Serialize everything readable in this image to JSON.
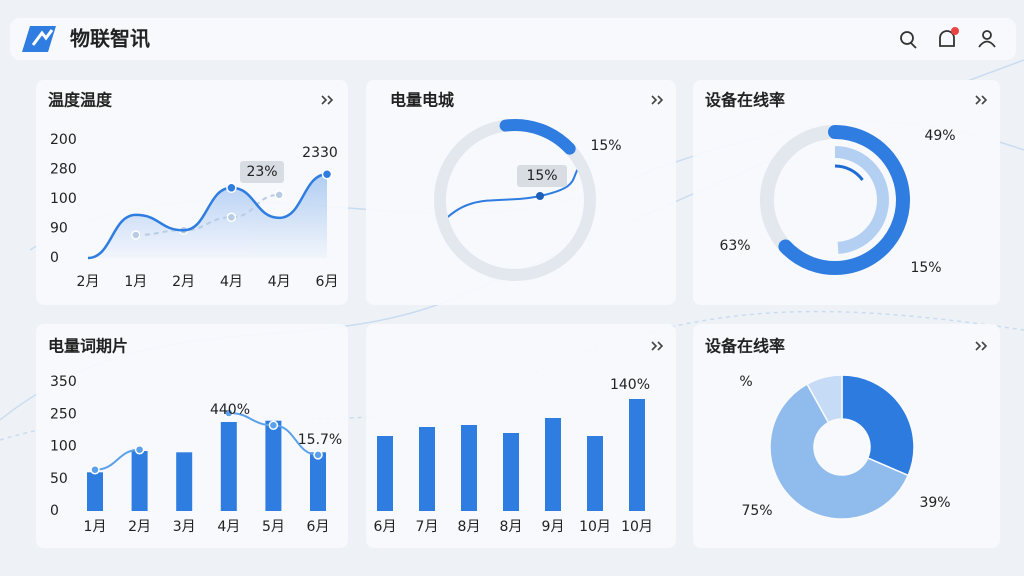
{
  "header": {
    "title": "物联智讯"
  },
  "chart_data": [
    {
      "type": "line",
      "title": "温度温度",
      "categories": [
        "2月",
        "1月",
        "2月",
        "4月",
        "4月",
        "6月"
      ],
      "y_axis_labels": [
        "200",
        "280",
        "100",
        "90",
        "0"
      ],
      "ylim": [
        0,
        200
      ],
      "series": [
        {
          "color": "#2f7de1",
          "values": [
            0,
            73,
            47,
            119,
            68,
            142
          ]
        },
        {
          "color": "#b9cce6",
          "values": [
            null,
            39,
            47,
            69,
            107,
            null
          ]
        }
      ],
      "annotations": [
        "23%",
        "2330"
      ]
    },
    {
      "type": "gauge",
      "title": "电量电城",
      "values": [
        15
      ],
      "value_labels": [
        "15%"
      ],
      "color": "#2f7de1",
      "annotations": [
        "15%"
      ]
    },
    {
      "type": "ring",
      "title": "设备在线率",
      "values": [
        63,
        49,
        15
      ],
      "value_labels": [
        "63%",
        "49%",
        "15%"
      ],
      "colors": [
        "#2f7de1",
        "#b3cff2",
        "#1e6bd6"
      ]
    },
    {
      "type": "bar_line",
      "title": "电量词期片",
      "categories": [
        "1月",
        "2月",
        "3月",
        "4月",
        "5月",
        "6月"
      ],
      "y_axis_labels": [
        "350",
        "250",
        "100",
        "50",
        "0"
      ],
      "ylim": [
        0,
        200
      ],
      "series": [
        {
          "color": "#2f7de1",
          "values": [
            60,
            93,
            91,
            138,
            140,
            91
          ]
        },
        {
          "color": "#5aa0ea",
          "values": [
            64,
            95,
            null,
            152,
            133,
            87
          ]
        }
      ],
      "annotations": [
        "440%",
        "15.7%"
      ]
    },
    {
      "type": "bar",
      "categories": [
        "6月",
        "7月",
        "8月",
        "8月",
        "9月",
        "10月",
        "10月"
      ],
      "values": [
        75,
        84,
        86,
        78,
        93,
        75,
        112
      ],
      "ylim": [
        0,
        130
      ],
      "color": "#2f7de1",
      "annotations": [
        "140%"
      ]
    },
    {
      "type": "pie",
      "title": "设备在线率",
      "values": [
        39,
        75,
        10
      ],
      "value_labels": [
        "39%",
        "75%",
        "%"
      ],
      "colors": [
        "#2e7be0",
        "#8fbbed",
        "#c5dbf6"
      ]
    }
  ]
}
